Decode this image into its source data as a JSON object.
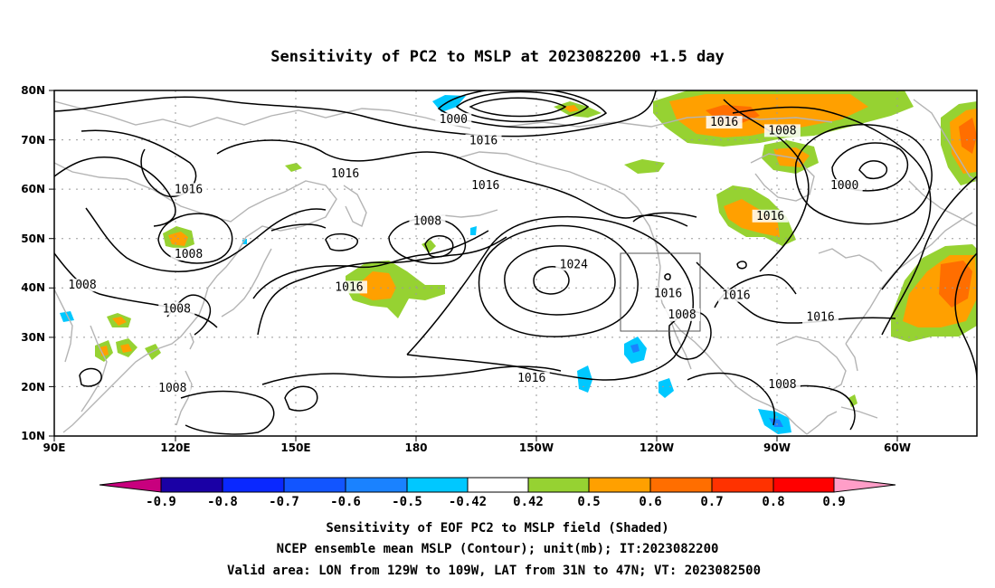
{
  "title": "Sensitivity of PC2 to MSLP at 2023082200 +1.5 day",
  "map": {
    "lon_labels": [
      "90E",
      "120E",
      "150E",
      "180",
      "150W",
      "120W",
      "90W",
      "60W"
    ],
    "lat_labels": [
      "80N",
      "70N",
      "60N",
      "50N",
      "40N",
      "30N",
      "20N",
      "10N"
    ],
    "grid": "dotted",
    "contour_interval_mb": 8,
    "contour_labels": [
      {
        "text": "1000",
        "lon": -170.5,
        "lat": 73.8
      },
      {
        "text": "1016",
        "lon": -163.0,
        "lat": 69.5
      },
      {
        "text": "1016",
        "lon": -103.0,
        "lat": 73.2
      },
      {
        "text": "1008",
        "lon": -88.5,
        "lat": 71.5
      },
      {
        "text": "1016",
        "lon": 162.5,
        "lat": 62.8
      },
      {
        "text": "1016",
        "lon": 123.5,
        "lat": 59.6
      },
      {
        "text": "1016",
        "lon": -162.5,
        "lat": 60.4
      },
      {
        "text": "1000",
        "lon": -73.0,
        "lat": 60.4
      },
      {
        "text": "1008",
        "lon": -177.0,
        "lat": 53.2
      },
      {
        "text": "1016",
        "lon": -91.5,
        "lat": 54.2
      },
      {
        "text": "1008",
        "lon": 123.5,
        "lat": 46.5
      },
      {
        "text": "1024",
        "lon": -140.5,
        "lat": 44.4
      },
      {
        "text": "1008",
        "lon": 97.0,
        "lat": 40.2
      },
      {
        "text": "1016",
        "lon": 163.5,
        "lat": 39.8
      },
      {
        "text": "1016",
        "lon": -117.0,
        "lat": 38.5
      },
      {
        "text": "1016",
        "lon": -100.0,
        "lat": 38.1
      },
      {
        "text": "1008",
        "lon": 120.5,
        "lat": 35.4
      },
      {
        "text": "1008",
        "lon": -113.5,
        "lat": 34.2
      },
      {
        "text": "1016",
        "lon": -79.0,
        "lat": 33.7
      },
      {
        "text": "1016",
        "lon": -151.0,
        "lat": 21.4
      },
      {
        "text": "1008",
        "lon": 119.5,
        "lat": 19.3
      },
      {
        "text": "1008",
        "lon": -88.5,
        "lat": 20.1
      }
    ],
    "valid_box": {
      "lon_w": -129,
      "lon_e": -109,
      "lat_s": 31,
      "lat_n": 47
    }
  },
  "colorbar": {
    "labels": [
      "-0.9",
      "-0.8",
      "-0.7",
      "-0.6",
      "-0.5",
      "-0.42",
      "0.42",
      "0.5",
      "0.6",
      "0.7",
      "0.8",
      "0.9"
    ],
    "colors": [
      "#c8007e",
      "#1a00a5",
      "#0a28ff",
      "#1255ff",
      "#1a82ff",
      "#00c8ff",
      "#ffffff",
      "#96d232",
      "#ffa000",
      "#ff6e00",
      "#ff3200",
      "#ff0000",
      "#ff9ec8"
    ]
  },
  "shading_colors": {
    "green": "#96d232",
    "orange": "#ffa000",
    "red_orange": "#ff6e00",
    "cyan": "#00c8ff",
    "blue": "#1a82ff",
    "pink": "#ff9ec8"
  },
  "line_colors": {
    "contour": "#000000",
    "coast": "#b4b4b4",
    "grid": "#9a9a9a"
  },
  "caption": {
    "line1": "Sensitivity of EOF PC2 to MSLP field (Shaded)",
    "line2": "NCEP ensemble mean MSLP (Contour); unit(mb); IT:2023082200",
    "line3": "Valid area: LON from 129W to 109W, LAT from 31N to 47N; VT: 2023082500"
  }
}
